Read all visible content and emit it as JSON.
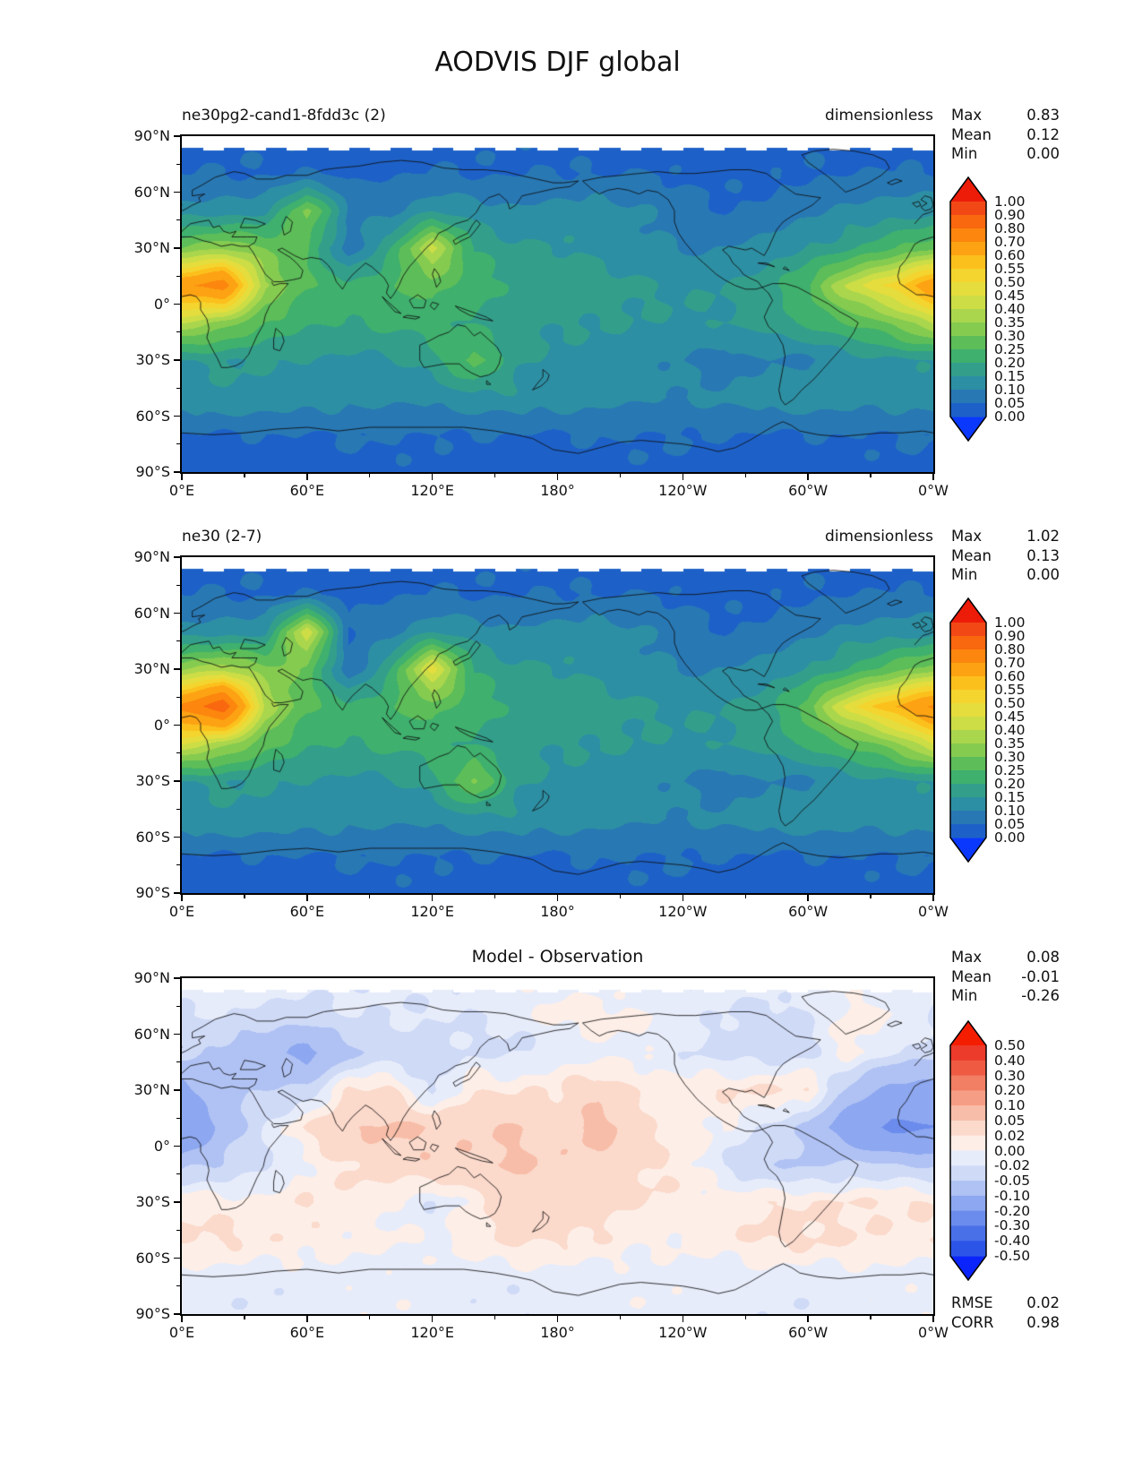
{
  "title": "AODVIS DJF global",
  "stats_labels": {
    "max": "Max",
    "mean": "Mean",
    "min": "Min",
    "rmse": "RMSE",
    "corr": "CORR"
  },
  "axis": {
    "x_tick_labels": [
      "0°E",
      "60°E",
      "120°E",
      "180°",
      "120°W",
      "60°W",
      "0°W"
    ],
    "y_tick_labels": [
      "90°N",
      "60°N",
      "30°N",
      "0°",
      "30°S",
      "60°S",
      "90°S"
    ]
  },
  "panels": [
    {
      "name": "model",
      "title": "ne30pg2-cand1-8fdd3c (2)",
      "units": "dimensionless",
      "max": "0.83",
      "mean": "0.12",
      "min": "0.00"
    },
    {
      "name": "reference",
      "title": "ne30 (2-7)",
      "units": "dimensionless",
      "max": "1.02",
      "mean": "0.13",
      "min": "0.00"
    },
    {
      "name": "difference",
      "title": "Model - Observation",
      "max": "0.08",
      "mean": "-0.01",
      "min": "-0.26",
      "rmse": "0.02",
      "corr": "0.98"
    }
  ],
  "chart_data": [
    {
      "type": "heatmap",
      "panel": "model",
      "title": "ne30pg2-cand1-8fdd3c (2)",
      "units": "dimensionless",
      "stats": {
        "max": 0.83,
        "mean": 0.12,
        "min": 0.0
      },
      "lon_start": 0,
      "lon_step": 20,
      "lat_start": 90,
      "lat_step": -20,
      "noise": 0.012,
      "levels": [
        0,
        0.05,
        0.1,
        0.15,
        0.2,
        0.25,
        0.3,
        0.35,
        0.4,
        0.45,
        0.5,
        0.55,
        0.6,
        0.7,
        0.8,
        0.9,
        1.0
      ],
      "colorbar_ticks": [
        "1.00",
        "0.90",
        "0.80",
        "0.70",
        "0.60",
        "0.55",
        "0.50",
        "0.45",
        "0.40",
        "0.35",
        "0.30",
        "0.25",
        "0.20",
        "0.15",
        "0.10",
        "0.05",
        "0.00"
      ],
      "colors": [
        "#1d61c8",
        "#2878b4",
        "#2d8fa3",
        "#339f8b",
        "#3fb06d",
        "#5cbd59",
        "#85cb50",
        "#aad64d",
        "#ccdd46",
        "#e5dd3d",
        "#f4d42e",
        "#fcc01d",
        "#fda313",
        "#fc860e",
        "#f9670f",
        "#f24816"
      ],
      "under_color": "#0a38fd",
      "over_color": "#ec1c09",
      "grid": [
        [
          0.03,
          0.03,
          0.03,
          0.03,
          0.03,
          0.03,
          0.03,
          0.03,
          0.03,
          0.03,
          0.03,
          0.03,
          0.03,
          0.03,
          0.03,
          0.03,
          0.03,
          0.03
        ],
        [
          0.05,
          0.05,
          0.05,
          0.05,
          0.04,
          0.04,
          0.05,
          0.05,
          0.05,
          0.05,
          0.05,
          0.05,
          0.04,
          0.04,
          0.04,
          0.05,
          0.05,
          0.05
        ],
        [
          0.12,
          0.13,
          0.14,
          0.32,
          0.1,
          0.07,
          0.14,
          0.13,
          0.12,
          0.12,
          0.12,
          0.1,
          0.06,
          0.05,
          0.07,
          0.1,
          0.12,
          0.12
        ],
        [
          0.3,
          0.34,
          0.3,
          0.25,
          0.07,
          0.2,
          0.42,
          0.2,
          0.15,
          0.15,
          0.14,
          0.12,
          0.1,
          0.1,
          0.12,
          0.15,
          0.18,
          0.25
        ],
        [
          0.68,
          0.75,
          0.35,
          0.25,
          0.22,
          0.25,
          0.28,
          0.22,
          0.18,
          0.18,
          0.18,
          0.16,
          0.15,
          0.15,
          0.17,
          0.25,
          0.42,
          0.52
        ],
        [
          0.4,
          0.34,
          0.26,
          0.21,
          0.2,
          0.2,
          0.22,
          0.2,
          0.18,
          0.16,
          0.15,
          0.14,
          0.14,
          0.15,
          0.18,
          0.22,
          0.25,
          0.3
        ],
        [
          0.15,
          0.16,
          0.15,
          0.15,
          0.14,
          0.14,
          0.18,
          0.28,
          0.16,
          0.14,
          0.13,
          0.12,
          0.1,
          0.08,
          0.1,
          0.09,
          0.13,
          0.14
        ],
        [
          0.13,
          0.13,
          0.13,
          0.13,
          0.12,
          0.12,
          0.12,
          0.13,
          0.13,
          0.12,
          0.12,
          0.12,
          0.11,
          0.11,
          0.12,
          0.12,
          0.13,
          0.13
        ],
        [
          0.05,
          0.05,
          0.05,
          0.05,
          0.05,
          0.05,
          0.05,
          0.05,
          0.05,
          0.05,
          0.05,
          0.05,
          0.05,
          0.05,
          0.05,
          0.05,
          0.05,
          0.05
        ],
        [
          0.03,
          0.03,
          0.03,
          0.03,
          0.03,
          0.03,
          0.03,
          0.03,
          0.03,
          0.03,
          0.03,
          0.03,
          0.03,
          0.03,
          0.03,
          0.03,
          0.03,
          0.03
        ]
      ]
    },
    {
      "type": "heatmap",
      "panel": "reference",
      "title": "ne30 (2-7)",
      "units": "dimensionless",
      "stats": {
        "max": 1.02,
        "mean": 0.13,
        "min": 0.0
      },
      "lon_start": 0,
      "lon_step": 20,
      "lat_start": 90,
      "lat_step": -20,
      "noise": 0.012,
      "levels": [
        0,
        0.05,
        0.1,
        0.15,
        0.2,
        0.25,
        0.3,
        0.35,
        0.4,
        0.45,
        0.5,
        0.55,
        0.6,
        0.7,
        0.8,
        0.9,
        1.0
      ],
      "colorbar_ticks": [
        "1.00",
        "0.90",
        "0.80",
        "0.70",
        "0.60",
        "0.55",
        "0.50",
        "0.45",
        "0.40",
        "0.35",
        "0.30",
        "0.25",
        "0.20",
        "0.15",
        "0.10",
        "0.05",
        "0.00"
      ],
      "colors": [
        "#1d61c8",
        "#2878b4",
        "#2d8fa3",
        "#339f8b",
        "#3fb06d",
        "#5cbd59",
        "#85cb50",
        "#aad64d",
        "#ccdd46",
        "#e5dd3d",
        "#f4d42e",
        "#fcc01d",
        "#fda313",
        "#fc860e",
        "#f9670f",
        "#f24816"
      ],
      "under_color": "#0a38fd",
      "over_color": "#ec1c09",
      "grid": [
        [
          0.03,
          0.03,
          0.03,
          0.03,
          0.03,
          0.03,
          0.03,
          0.03,
          0.03,
          0.03,
          0.03,
          0.03,
          0.03,
          0.03,
          0.03,
          0.03,
          0.03,
          0.03
        ],
        [
          0.05,
          0.05,
          0.05,
          0.05,
          0.04,
          0.04,
          0.05,
          0.05,
          0.05,
          0.05,
          0.05,
          0.05,
          0.04,
          0.04,
          0.04,
          0.05,
          0.05,
          0.05
        ],
        [
          0.12,
          0.13,
          0.14,
          0.45,
          0.05,
          0.07,
          0.14,
          0.13,
          0.12,
          0.12,
          0.12,
          0.1,
          0.06,
          0.05,
          0.07,
          0.1,
          0.12,
          0.12
        ],
        [
          0.34,
          0.38,
          0.32,
          0.28,
          0.06,
          0.2,
          0.48,
          0.2,
          0.15,
          0.15,
          0.14,
          0.12,
          0.1,
          0.1,
          0.12,
          0.15,
          0.2,
          0.28
        ],
        [
          0.72,
          0.88,
          0.38,
          0.26,
          0.22,
          0.25,
          0.28,
          0.22,
          0.18,
          0.18,
          0.18,
          0.16,
          0.15,
          0.15,
          0.17,
          0.28,
          0.48,
          0.6
        ],
        [
          0.45,
          0.38,
          0.28,
          0.21,
          0.2,
          0.2,
          0.22,
          0.2,
          0.18,
          0.16,
          0.15,
          0.14,
          0.14,
          0.15,
          0.18,
          0.22,
          0.26,
          0.32
        ],
        [
          0.15,
          0.16,
          0.15,
          0.15,
          0.14,
          0.14,
          0.18,
          0.32,
          0.16,
          0.14,
          0.13,
          0.12,
          0.1,
          0.08,
          0.1,
          0.09,
          0.13,
          0.14
        ],
        [
          0.13,
          0.13,
          0.13,
          0.13,
          0.12,
          0.12,
          0.12,
          0.13,
          0.13,
          0.12,
          0.12,
          0.12,
          0.11,
          0.11,
          0.12,
          0.12,
          0.13,
          0.13
        ],
        [
          0.05,
          0.05,
          0.05,
          0.05,
          0.05,
          0.05,
          0.05,
          0.05,
          0.05,
          0.05,
          0.05,
          0.05,
          0.05,
          0.05,
          0.05,
          0.05,
          0.05,
          0.05
        ],
        [
          0.03,
          0.03,
          0.03,
          0.03,
          0.03,
          0.03,
          0.03,
          0.03,
          0.03,
          0.03,
          0.03,
          0.03,
          0.03,
          0.03,
          0.03,
          0.03,
          0.03,
          0.03
        ]
      ]
    },
    {
      "type": "heatmap",
      "panel": "difference",
      "title": "Model - Observation",
      "stats": {
        "max": 0.08,
        "mean": -0.01,
        "min": -0.26,
        "rmse": 0.02,
        "corr": 0.98
      },
      "lon_start": 0,
      "lon_step": 20,
      "lat_start": 90,
      "lat_step": -20,
      "noise": 0.008,
      "levels": [
        -0.5,
        -0.4,
        -0.3,
        -0.2,
        -0.1,
        -0.05,
        -0.02,
        0.0,
        0.02,
        0.05,
        0.1,
        0.2,
        0.3,
        0.4,
        0.5
      ],
      "colorbar_ticks": [
        "0.50",
        "0.40",
        "0.30",
        "0.20",
        "0.10",
        "0.05",
        "0.02",
        "0.00",
        "-0.02",
        "-0.05",
        "-0.10",
        "-0.20",
        "-0.30",
        "-0.40",
        "-0.50"
      ],
      "colors": [
        "#2c55e8",
        "#4a70e8",
        "#6b8cec",
        "#8da7f0",
        "#b0c2f4",
        "#cfdaf7",
        "#e7ecfa",
        "#fdeee7",
        "#fbd9cb",
        "#f8bda8",
        "#f59e85",
        "#f27e63",
        "#ef5a43",
        "#ec3a2b"
      ],
      "under_color": "#0b24fb",
      "over_color": "#f51d00",
      "grid": [
        [
          -0.01,
          -0.01,
          -0.01,
          -0.01,
          -0.01,
          -0.01,
          -0.01,
          -0.01,
          -0.01,
          -0.01,
          -0.01,
          -0.01,
          -0.01,
          -0.01,
          -0.01,
          -0.01,
          -0.01,
          -0.01
        ],
        [
          -0.02,
          -0.02,
          -0.03,
          -0.03,
          -0.02,
          -0.02,
          -0.02,
          -0.02,
          -0.01,
          0.01,
          0.01,
          0.0,
          -0.01,
          -0.02,
          -0.03,
          -0.02,
          0.01,
          0.0
        ],
        [
          -0.04,
          -0.06,
          -0.08,
          -0.12,
          -0.06,
          -0.04,
          -0.03,
          -0.02,
          -0.02,
          -0.01,
          -0.01,
          -0.01,
          -0.02,
          -0.03,
          -0.03,
          -0.02,
          0.01,
          -0.02
        ],
        [
          -0.12,
          -0.06,
          -0.05,
          -0.04,
          0.03,
          0.03,
          -0.03,
          0.02,
          0.01,
          0.02,
          0.04,
          0.02,
          0.01,
          0.02,
          0.02,
          0.02,
          -0.06,
          -0.12
        ],
        [
          -0.2,
          -0.08,
          -0.02,
          0.02,
          0.05,
          0.06,
          0.05,
          0.04,
          0.05,
          0.03,
          0.07,
          0.03,
          0.01,
          0.0,
          -0.03,
          -0.06,
          -0.15,
          -0.22
        ],
        [
          -0.06,
          -0.04,
          -0.02,
          0.0,
          0.02,
          0.03,
          0.04,
          0.05,
          0.06,
          0.05,
          0.04,
          0.02,
          0.01,
          -0.02,
          -0.04,
          -0.05,
          -0.04,
          -0.05
        ],
        [
          0.02,
          0.01,
          0.01,
          0.02,
          0.01,
          0.0,
          -0.02,
          0.01,
          0.04,
          0.04,
          0.03,
          0.02,
          0.01,
          0.01,
          0.02,
          0.02,
          0.02,
          0.02
        ],
        [
          0.02,
          0.02,
          0.01,
          0.01,
          0.01,
          0.01,
          0.0,
          0.01,
          0.02,
          0.02,
          0.02,
          0.01,
          0.01,
          0.01,
          0.02,
          0.02,
          0.02,
          0.02
        ],
        [
          -0.01,
          -0.01,
          -0.01,
          -0.01,
          -0.01,
          -0.01,
          -0.01,
          -0.01,
          -0.01,
          -0.01,
          -0.01,
          -0.01,
          -0.01,
          -0.01,
          -0.01,
          -0.01,
          -0.01,
          -0.01
        ],
        [
          -0.01,
          -0.01,
          -0.01,
          -0.01,
          -0.01,
          -0.01,
          -0.01,
          -0.01,
          -0.01,
          -0.01,
          -0.01,
          -0.01,
          -0.01,
          -0.01,
          -0.01,
          -0.01,
          -0.01,
          -0.01
        ]
      ]
    }
  ]
}
